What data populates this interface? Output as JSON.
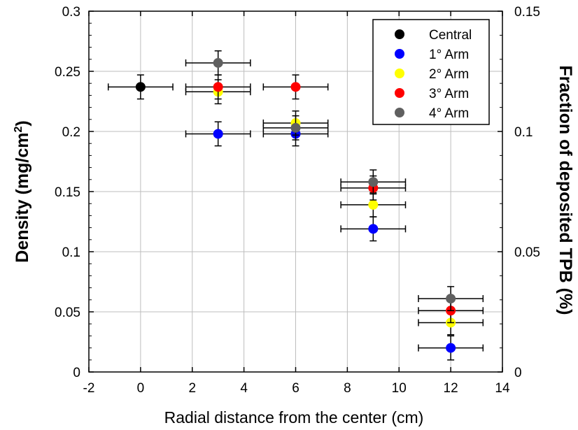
{
  "chart_data": {
    "type": "scatter",
    "xlabel": "Radial distance from the center (cm)",
    "ylabel": "Density (mg/cm²)",
    "ylabel_parts": {
      "main": "Density (mg/cm",
      "sup": "2",
      "end": ")"
    },
    "y2label": "Fraction of deposited TPB (%)",
    "xlim": [
      -2,
      14
    ],
    "ylim": [
      0,
      0.3
    ],
    "y2lim": [
      0,
      0.15
    ],
    "xticks": [
      "-2",
      "0",
      "2",
      "4",
      "6",
      "8",
      "10",
      "12",
      "14"
    ],
    "xtick_values": [
      -2,
      0,
      2,
      4,
      6,
      8,
      10,
      12,
      14
    ],
    "yticks": [
      "0",
      "0.05",
      "0.1",
      "0.15",
      "0.2",
      "0.25",
      "0.3"
    ],
    "ytick_values": [
      0,
      0.05,
      0.1,
      0.15,
      0.2,
      0.25,
      0.3
    ],
    "y2ticks": [
      "0",
      "0.05",
      "0.1",
      "0.15"
    ],
    "y2tick_values": [
      0,
      0.05,
      0.1,
      0.15
    ],
    "grid": true,
    "legend_position": "top-right",
    "x_error": 1.25,
    "y_error": 0.01,
    "series": [
      {
        "name": "Central",
        "color": "#000000",
        "points": [
          [
            0,
            0.237
          ]
        ]
      },
      {
        "name": "1° Arm",
        "color": "#0000ff",
        "points": [
          [
            3,
            0.198
          ],
          [
            6,
            0.198
          ],
          [
            9,
            0.119
          ],
          [
            12,
            0.02
          ]
        ]
      },
      {
        "name": "2° Arm",
        "color": "#ffff00",
        "points": [
          [
            3,
            0.233
          ],
          [
            6,
            0.207
          ],
          [
            9,
            0.139
          ],
          [
            12,
            0.041
          ]
        ]
      },
      {
        "name": "3° Arm",
        "color": "#ff0000",
        "points": [
          [
            3,
            0.237
          ],
          [
            6,
            0.237
          ],
          [
            9,
            0.153
          ],
          [
            12,
            0.051
          ]
        ]
      },
      {
        "name": "4° Arm",
        "color": "#606060",
        "points": [
          [
            3,
            0.257
          ],
          [
            6,
            0.203
          ],
          [
            9,
            0.158
          ],
          [
            12,
            0.061
          ]
        ]
      }
    ]
  }
}
